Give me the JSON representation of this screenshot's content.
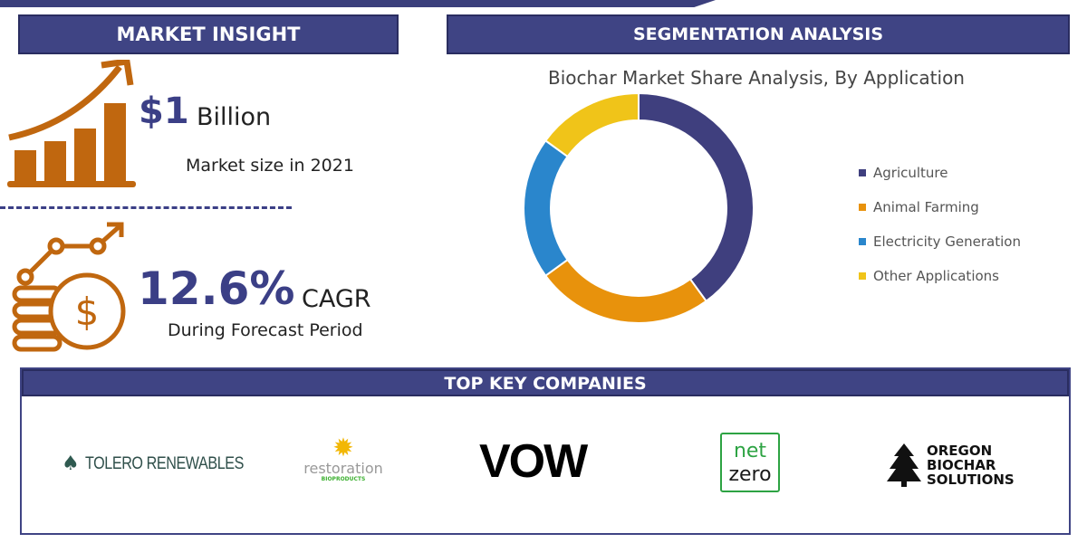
{
  "market_insight": {
    "header": "MARKET INSIGHT",
    "size_value": "$1",
    "size_unit": "Billion",
    "size_caption": "Market size in 2021",
    "cagr_value": "12.6%",
    "cagr_unit": "CAGR",
    "cagr_caption": "During Forecast Period"
  },
  "segmentation": {
    "header": "SEGMENTATION ANALYSIS"
  },
  "chart_data": {
    "type": "pie",
    "subtype": "donut",
    "title": "Biochar Market Share Analysis, By Application",
    "categories": [
      "Agriculture",
      "Animal Farming",
      "Electricity Generation",
      "Other Applications"
    ],
    "values": [
      40,
      25,
      20,
      15
    ],
    "unit": "%",
    "colors": [
      "#3f3f7e",
      "#e8920c",
      "#2a86cc",
      "#f0c419"
    ],
    "legend": "right"
  },
  "companies": {
    "header": "TOP KEY COMPANIES",
    "items": [
      {
        "name": "TOLERO RENEWABLES"
      },
      {
        "name": "restoration",
        "sub": "BIOPRODUCTS"
      },
      {
        "name": "VOW"
      },
      {
        "name": "net",
        "name2": "zero"
      },
      {
        "name": "OREGON",
        "name2": "BIOCHAR",
        "name3": "SOLUTIONS"
      }
    ]
  }
}
